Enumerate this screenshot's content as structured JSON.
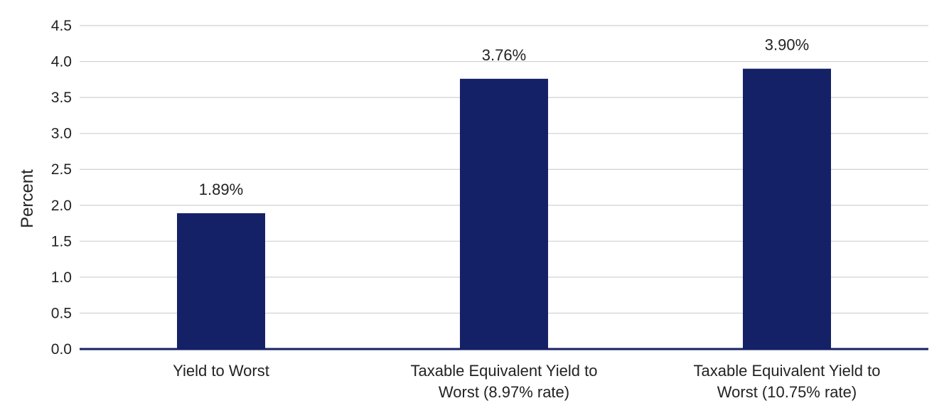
{
  "chart_data": {
    "type": "bar",
    "categories": [
      "Yield to Worst",
      "Taxable Equivalent Yield to Worst (8.97% rate)",
      "Taxable Equivalent Yield to Worst (10.75% rate)"
    ],
    "category_label_lines": [
      [
        "Yield to Worst"
      ],
      [
        "Taxable Equivalent Yield to",
        "Worst (8.97% rate)"
      ],
      [
        "Taxable Equivalent Yield to",
        "Worst (10.75% rate)"
      ]
    ],
    "values": [
      1.89,
      3.76,
      3.9
    ],
    "data_labels": [
      "1.89%",
      "3.76%",
      "3.90%"
    ],
    "title": "",
    "xlabel": "",
    "ylabel": "Percent",
    "ylim": [
      0,
      4.5
    ],
    "yticks": [
      "0.0",
      "0.5",
      "1.0",
      "1.5",
      "2.0",
      "2.5",
      "3.0",
      "3.5",
      "4.0",
      "4.5"
    ],
    "grid": true,
    "legend": "none",
    "colors": {
      "bar": "#152166",
      "baseline": "#152166",
      "grid": "#d0d0d0"
    }
  }
}
